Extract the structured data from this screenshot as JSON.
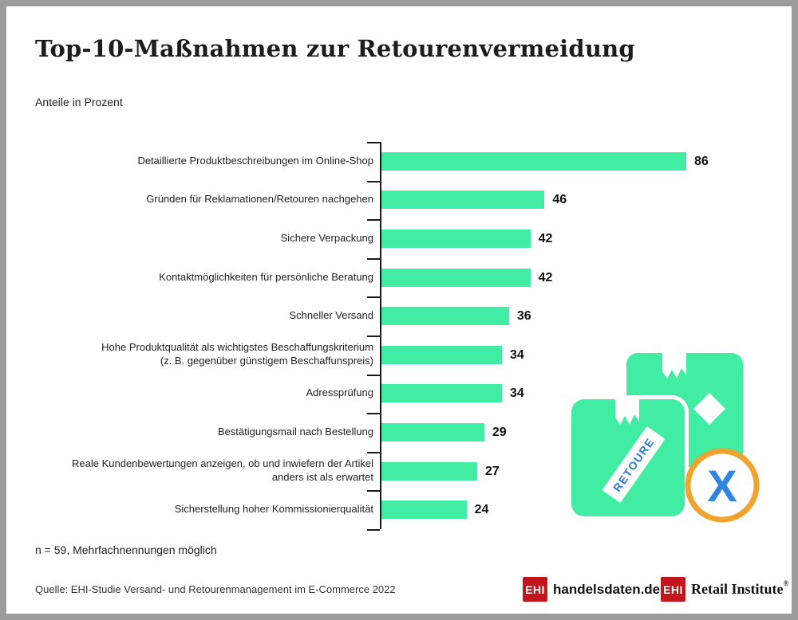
{
  "title": "Top-10-Maßnahmen zur Retourenvermeidung",
  "subtitle": "Anteile in Prozent",
  "footnote": "n = 59, Mehrfachnennungen möglich",
  "source": "Quelle: EHI-Studie Versand- und Retourenmanagement im E-Commerce 2022",
  "chart_data": {
    "type": "bar",
    "orientation": "horizontal",
    "title": "Top-10-Maßnahmen zur Retourenvermeidung",
    "xlabel": "Anteile in Prozent",
    "ylabel": "",
    "xlim": [
      0,
      90
    ],
    "grid": false,
    "legend": null,
    "value_labels_shown": true,
    "bar_color": "#40eda2",
    "categories": [
      "Detaillierte Produktbeschreibungen im Online-Shop",
      "Gründen für Reklamationen/Retouren nachgehen",
      "Sichere Verpackung",
      "Kontaktmöglichkeiten für persönliche Beratung",
      "Schneller Versand",
      "Hohe Produktqualität als wichtigstes Beschaffungskriterium\n(z. B. gegenüber günstigem Beschaffunspreis)",
      "Adressprüfung",
      "Bestätigungsmail nach Bestellung",
      "Reale Kundenbewertungen anzeigen, ob und inwiefern der Artikel\nanders ist als erwartet",
      "Sicherstellung hoher Kommissionierqualität"
    ],
    "values": [
      86,
      46,
      42,
      42,
      36,
      34,
      34,
      29,
      27,
      24
    ]
  },
  "illustration": {
    "stamp_label": "RETOURE",
    "x_mark": "X",
    "colors": {
      "box_green": "#40eda2",
      "stamp_text_blue": "#2e7bd6",
      "ring_orange": "#f0a32e",
      "x_blue": "#2e86de"
    }
  },
  "logos": {
    "handelsdaten": {
      "badge": "EHI",
      "text": "handelsdaten.de"
    },
    "retail_institute": {
      "badge": "EHI",
      "text": "Retail Institute",
      "registered": "®"
    }
  },
  "colors": {
    "accent_green": "#40eda2",
    "logo_red": "#c3161c",
    "frame_gray": "#9b9b9b",
    "axis_black": "#1a1a1a"
  }
}
